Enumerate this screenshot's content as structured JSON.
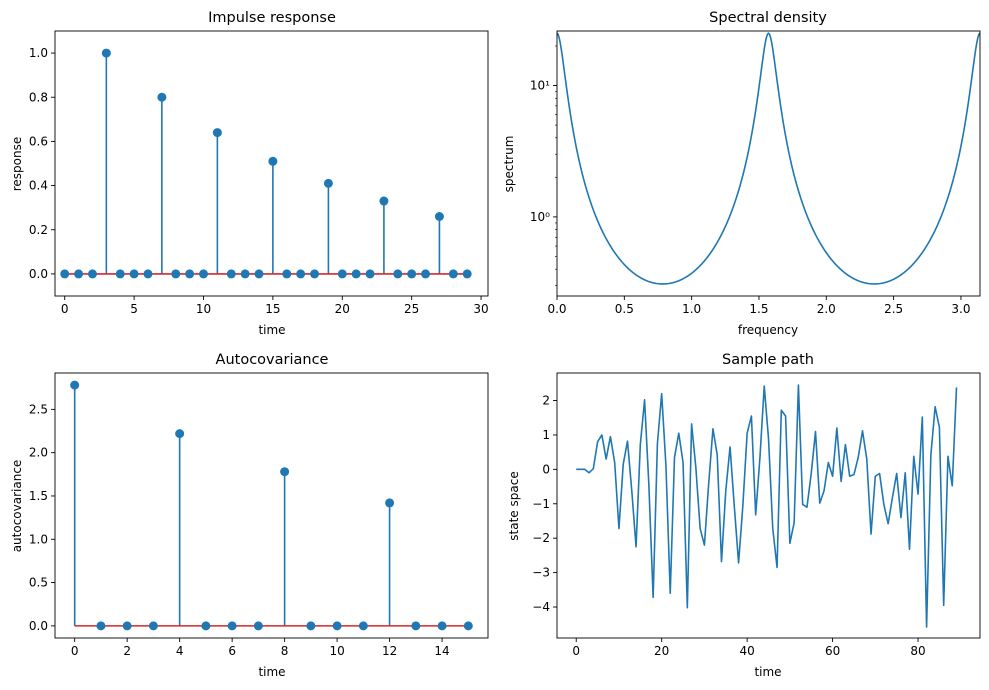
{
  "chart_data": [
    {
      "type": "stem",
      "title": "Impulse response",
      "xlabel": "time",
      "ylabel": "response",
      "xlim": [
        -0.7,
        30.5
      ],
      "ylim": [
        -0.1,
        1.1
      ],
      "xticks": [
        0,
        5,
        10,
        15,
        20,
        25,
        30
      ],
      "xtick_labels": [
        "0",
        "5",
        "10",
        "15",
        "20",
        "25",
        "30"
      ],
      "yticks": [
        0.0,
        0.2,
        0.4,
        0.6,
        0.8,
        1.0
      ],
      "ytick_labels": [
        "0.0",
        "0.2",
        "0.4",
        "0.6",
        "0.8",
        "1.0"
      ],
      "baseline": 0,
      "x": [
        0,
        1,
        2,
        3,
        4,
        5,
        6,
        7,
        8,
        9,
        10,
        11,
        12,
        13,
        14,
        15,
        16,
        17,
        18,
        19,
        20,
        21,
        22,
        23,
        24,
        25,
        26,
        27,
        28,
        29
      ],
      "y": [
        0,
        0,
        0,
        1.0,
        0,
        0,
        0,
        0.8,
        0,
        0,
        0,
        0.64,
        0,
        0,
        0,
        0.51,
        0,
        0,
        0,
        0.41,
        0,
        0,
        0,
        0.33,
        0,
        0,
        0,
        0.26,
        0,
        0
      ],
      "grid": false
    },
    {
      "type": "line",
      "title": "Spectral density",
      "xlabel": "frequency",
      "ylabel": "spectrum",
      "xscale": "linear",
      "yscale": "log",
      "xlim": [
        0,
        3.1416
      ],
      "ylim": [
        0.25,
        26
      ],
      "xticks": [
        0.0,
        0.5,
        1.0,
        1.5,
        2.0,
        2.5,
        3.0
      ],
      "xtick_labels": [
        "0.0",
        "0.5",
        "1.0",
        "1.5",
        "2.0",
        "2.5",
        "3.0"
      ],
      "yticks": [
        1,
        10
      ],
      "ytick_labels": [
        "10⁰",
        "10¹"
      ],
      "series_function": "1 / |1 - 0.8 e^{-4iω}|^2, ω from 0 to π",
      "grid": false
    },
    {
      "type": "stem",
      "title": "Autocovariance",
      "xlabel": "time",
      "ylabel": "autocovariance",
      "xlim": [
        -0.75,
        15.75
      ],
      "ylim": [
        -0.14,
        2.92
      ],
      "xticks": [
        0,
        2,
        4,
        6,
        8,
        10,
        12,
        14
      ],
      "xtick_labels": [
        "0",
        "2",
        "4",
        "6",
        "8",
        "10",
        "12",
        "14"
      ],
      "yticks": [
        0.0,
        0.5,
        1.0,
        1.5,
        2.0,
        2.5
      ],
      "ytick_labels": [
        "0.0",
        "0.5",
        "1.0",
        "1.5",
        "2.0",
        "2.5"
      ],
      "baseline": 0,
      "x": [
        0,
        1,
        2,
        3,
        4,
        5,
        6,
        7,
        8,
        9,
        10,
        11,
        12,
        13,
        14,
        15
      ],
      "y": [
        2.78,
        0,
        0,
        0,
        2.22,
        0,
        0,
        0,
        1.78,
        0,
        0,
        0,
        1.42,
        0,
        0,
        0
      ],
      "grid": false
    },
    {
      "type": "line",
      "title": "Sample path",
      "xlabel": "time",
      "ylabel": "state space",
      "xlim": [
        -4.5,
        94.5
      ],
      "ylim": [
        -4.9,
        2.8
      ],
      "xticks": [
        0,
        20,
        40,
        60,
        80
      ],
      "xtick_labels": [
        "0",
        "20",
        "40",
        "60",
        "80"
      ],
      "yticks": [
        -4,
        -3,
        -2,
        -1,
        0,
        1,
        2
      ],
      "ytick_labels": [
        "−4",
        "−3",
        "−2",
        "−1",
        "0",
        "1",
        "2"
      ],
      "x_start": 0,
      "y": [
        0,
        0,
        0,
        -0.1,
        0.02,
        0.8,
        1.0,
        0.3,
        0.95,
        0.2,
        -1.72,
        0.15,
        0.82,
        -0.62,
        -2.25,
        0.72,
        2.02,
        -0.45,
        -3.72,
        0.75,
        2.2,
        0.1,
        -3.6,
        0.35,
        1.05,
        0.2,
        -4.02,
        1.32,
        0.05,
        -1.72,
        -2.2,
        -0.42,
        1.18,
        0.42,
        -2.68,
        -0.62,
        0.65,
        -1.08,
        -2.72,
        -1.05,
        1.05,
        1.55,
        -1.32,
        0.35,
        2.42,
        0.9,
        -1.72,
        -2.85,
        1.72,
        1.55,
        -2.15,
        -1.55,
        2.45,
        -1.02,
        -1.1,
        -0.12,
        1.1,
        -0.98,
        -0.62,
        0.2,
        -0.2,
        1.2,
        -0.35,
        0.72,
        -0.2,
        -0.15,
        0.35,
        1.12,
        0.3,
        -1.88,
        -0.2,
        -0.12,
        -1.02,
        -1.58,
        -0.82,
        -0.12,
        -1.4,
        -0.1,
        -2.32,
        0.38,
        -0.72,
        1.52,
        -4.58,
        0.42,
        1.82,
        1.22,
        -3.95,
        0.38,
        -0.48,
        2.38
      ],
      "grid": false
    }
  ],
  "style": {
    "line_color": "#1f77b4",
    "marker_color": "#1f77b4",
    "baseline_color": "#d62728"
  }
}
